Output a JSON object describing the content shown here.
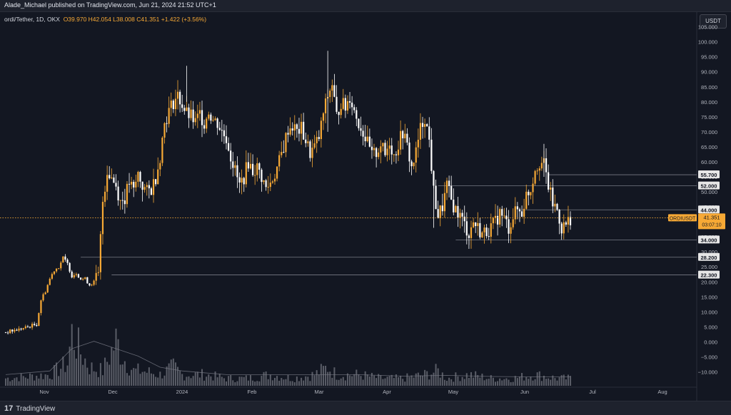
{
  "header": {
    "published_line": "Alade_Michael published on TradingView.com, Jun 21, 2024 21:52 UTC+1",
    "symbol": "ordi/Tether, 1D, OKX",
    "ohlc": "O39.970  H42.054  L38.008  C41.351  +1.422 (+3.56%)",
    "currency_badge": "USDT"
  },
  "footer": {
    "brand": "TradingView",
    "logo_mark": "17"
  },
  "price_tag": {
    "symbol": "ORDIUSDT",
    "price": "41.351",
    "countdown": "03:07:10"
  },
  "colors": {
    "background": "#131722",
    "up": "#f7a935",
    "down": "#ffffff",
    "volume": "#9598a1",
    "level_line": "#787b86",
    "price_line": "#f7a935"
  },
  "chart_data": {
    "type": "candlestick",
    "x_axis_labels": [
      "Nov",
      "Dec",
      "2024",
      "Feb",
      "Mar",
      "Apr",
      "May",
      "Jun",
      "Jul",
      "Aug"
    ],
    "y_axis_labels": [
      "105.000",
      "100.000",
      "95.000",
      "90.000",
      "85.000",
      "80.000",
      "75.000",
      "70.000",
      "65.000",
      "60.000",
      "55.000",
      "50.000",
      "45.000",
      "40.000",
      "35.000",
      "30.000",
      "25.000",
      "20.000",
      "15.000",
      "10.000",
      "5.000",
      "0.000",
      "−5.000",
      "−10.000"
    ],
    "ylim": [
      -12.5,
      107
    ],
    "horizontal_levels": [
      55.7,
      52.0,
      44.0,
      34.0,
      28.2,
      22.3
    ],
    "level_labels": [
      "55.700",
      "52.000",
      "44.000",
      "34.000",
      "28.200",
      "22.300"
    ],
    "current_price": 41.351,
    "close_path": [
      [
        0,
        3.2
      ],
      [
        8,
        4.5
      ],
      [
        12,
        5.5
      ],
      [
        14,
        5.8
      ],
      [
        16,
        14
      ],
      [
        18,
        17
      ],
      [
        20,
        21
      ],
      [
        22,
        24
      ],
      [
        24,
        25
      ],
      [
        26,
        28
      ],
      [
        28,
        26
      ],
      [
        30,
        22
      ],
      [
        32,
        23
      ],
      [
        34,
        21
      ],
      [
        36,
        21
      ],
      [
        38,
        19
      ],
      [
        40,
        20
      ],
      [
        42,
        22
      ],
      [
        44,
        47
      ],
      [
        46,
        57
      ],
      [
        48,
        55
      ],
      [
        50,
        52
      ],
      [
        52,
        47
      ],
      [
        54,
        48
      ],
      [
        56,
        53
      ],
      [
        58,
        50
      ],
      [
        60,
        56
      ],
      [
        62,
        52
      ],
      [
        64,
        50
      ],
      [
        66,
        51
      ],
      [
        68,
        55
      ],
      [
        70,
        62
      ],
      [
        72,
        73
      ],
      [
        74,
        77
      ],
      [
        76,
        80
      ],
      [
        78,
        82
      ],
      [
        80,
        79
      ],
      [
        82,
        76
      ],
      [
        84,
        75
      ],
      [
        86,
        73
      ],
      [
        88,
        76
      ],
      [
        90,
        73
      ],
      [
        92,
        77
      ],
      [
        94,
        74
      ],
      [
        96,
        73
      ],
      [
        98,
        70
      ],
      [
        100,
        68
      ],
      [
        102,
        62
      ],
      [
        104,
        57
      ],
      [
        106,
        52
      ],
      [
        108,
        55
      ],
      [
        110,
        60
      ],
      [
        112,
        57
      ],
      [
        114,
        58
      ],
      [
        116,
        55
      ],
      [
        118,
        51
      ],
      [
        120,
        53
      ],
      [
        122,
        56
      ],
      [
        124,
        60
      ],
      [
        126,
        65
      ],
      [
        128,
        71
      ],
      [
        130,
        72
      ],
      [
        132,
        70
      ],
      [
        134,
        71
      ],
      [
        136,
        67
      ],
      [
        138,
        63
      ],
      [
        140,
        65
      ],
      [
        142,
        68
      ],
      [
        144,
        76
      ],
      [
        146,
        82
      ],
      [
        148,
        86
      ],
      [
        150,
        75
      ],
      [
        152,
        80
      ],
      [
        154,
        78
      ],
      [
        156,
        82
      ],
      [
        158,
        77
      ],
      [
        160,
        73
      ],
      [
        162,
        70
      ],
      [
        164,
        66
      ],
      [
        166,
        62
      ],
      [
        168,
        63
      ],
      [
        170,
        66
      ],
      [
        172,
        62
      ],
      [
        174,
        67
      ],
      [
        176,
        62
      ],
      [
        178,
        66
      ],
      [
        180,
        70
      ],
      [
        182,
        65
      ],
      [
        184,
        58
      ],
      [
        186,
        63
      ],
      [
        188,
        71
      ],
      [
        190,
        75
      ],
      [
        192,
        67
      ],
      [
        194,
        50
      ],
      [
        196,
        42
      ],
      [
        198,
        45
      ],
      [
        200,
        52
      ],
      [
        202,
        47
      ],
      [
        204,
        44
      ],
      [
        206,
        42
      ],
      [
        208,
        39
      ],
      [
        210,
        36
      ],
      [
        212,
        40
      ],
      [
        214,
        38
      ],
      [
        216,
        36
      ],
      [
        218,
        37
      ],
      [
        220,
        38
      ],
      [
        222,
        40
      ],
      [
        224,
        43
      ],
      [
        226,
        41
      ],
      [
        228,
        38
      ],
      [
        230,
        42
      ],
      [
        232,
        44
      ],
      [
        234,
        43
      ],
      [
        236,
        49
      ],
      [
        238,
        51
      ],
      [
        240,
        58
      ],
      [
        242,
        60
      ],
      [
        244,
        59
      ],
      [
        246,
        52
      ],
      [
        248,
        46
      ],
      [
        250,
        44
      ],
      [
        252,
        38
      ],
      [
        254,
        39
      ],
      [
        256,
        41.351
      ]
    ],
    "volume_profile": [
      [
        0,
        2
      ],
      [
        20,
        3
      ],
      [
        28,
        6
      ],
      [
        30,
        14
      ],
      [
        34,
        9
      ],
      [
        38,
        5
      ],
      [
        44,
        4
      ],
      [
        50,
        12
      ],
      [
        54,
        7
      ],
      [
        58,
        4
      ],
      [
        62,
        4
      ],
      [
        70,
        3
      ],
      [
        76,
        5
      ],
      [
        80,
        3
      ],
      [
        90,
        3
      ],
      [
        100,
        2
      ],
      [
        110,
        2
      ],
      [
        120,
        3
      ],
      [
        130,
        2
      ],
      [
        140,
        3
      ],
      [
        146,
        5
      ],
      [
        150,
        3
      ],
      [
        160,
        3
      ],
      [
        170,
        2
      ],
      [
        180,
        2
      ],
      [
        190,
        3
      ],
      [
        196,
        4
      ],
      [
        200,
        2
      ],
      [
        210,
        3
      ],
      [
        220,
        2
      ],
      [
        230,
        2
      ],
      [
        240,
        3
      ],
      [
        250,
        2
      ],
      [
        256,
        2
      ]
    ],
    "volume_ma": [
      [
        0,
        3
      ],
      [
        20,
        4
      ],
      [
        30,
        10
      ],
      [
        40,
        12
      ],
      [
        50,
        10
      ],
      [
        60,
        8
      ],
      [
        70,
        5
      ],
      [
        80,
        4
      ],
      [
        90,
        3.5
      ],
      [
        100,
        3
      ],
      [
        120,
        3
      ],
      [
        140,
        3
      ],
      [
        160,
        3
      ],
      [
        180,
        2.6
      ],
      [
        200,
        2.8
      ],
      [
        220,
        2.5
      ],
      [
        240,
        2.4
      ],
      [
        256,
        2.4
      ]
    ]
  }
}
